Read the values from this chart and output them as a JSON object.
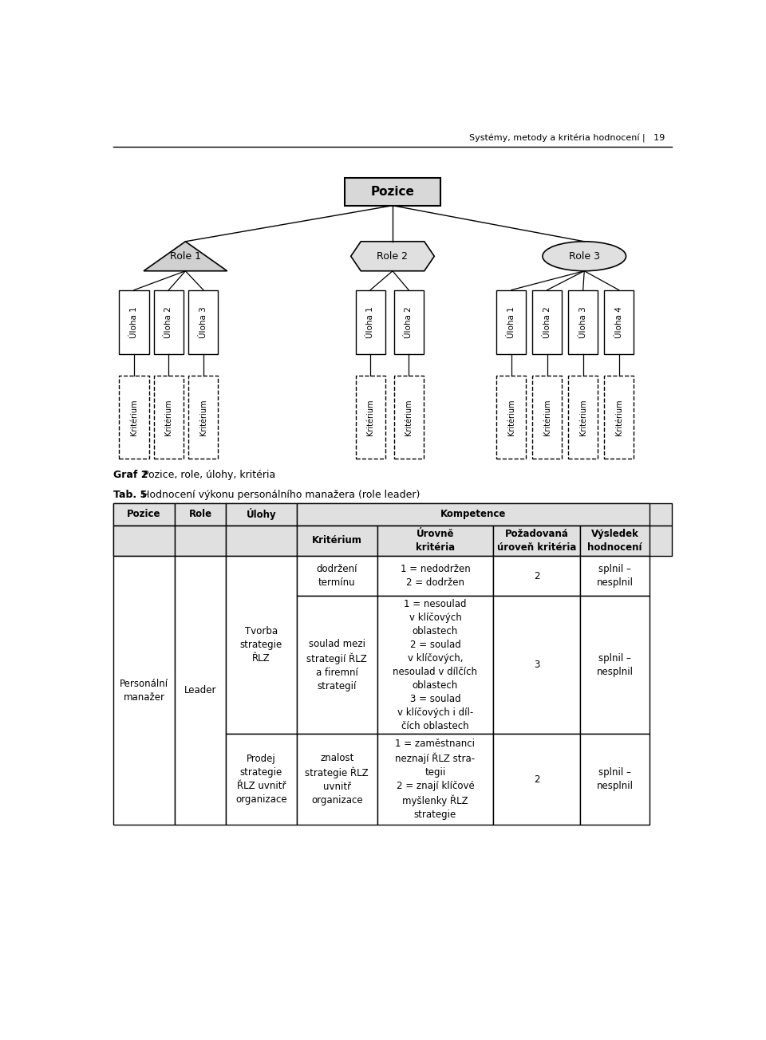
{
  "header_text": "Systémy, metody a kritéria hodnocení |   19",
  "graf_label": "Graf 2",
  "graf_desc": "  Pozice, role, úlohy, kritéria",
  "tab_label": "Tab. 5",
  "tab_desc": "  Hodnocení výkonu personálního manažera (role leader)",
  "pozice_label": "Pozice",
  "roles": [
    "Role 1",
    "Role 2",
    "Role 3"
  ],
  "ulohy": {
    "Role 1": [
      "Úloha 1",
      "Úloha 2",
      "Úloha 3"
    ],
    "Role 2": [
      "Úloha 1",
      "Úloha 2"
    ],
    "Role 3": [
      "Úloha 1",
      "Úloha 2",
      "Úloha 3",
      "Úloha 4"
    ]
  },
  "kriterium_label": "Kritérium",
  "bg_header": "#e0e0e0",
  "shape_fill_pozice": "#d8d8d8",
  "shape_fill_role1": "#d0d0d0",
  "shape_fill_role2": "#e8e8e8",
  "shape_fill_role3": "#e8e8e8",
  "table_rows": [
    {
      "kriterium": "dodržení\ntermínu",
      "urovne": "1 = nedodržen\n2 = dodržen",
      "pozadovana": "2",
      "vysledek": "splnil –\nnesplnil"
    },
    {
      "kriterium": "soulad mezi\nstrategií ŘLZ\na firemní\nstrategií",
      "urovne": "1 = nesoulad\nv klíčových\noblastech\n2 = soulad\nv klíčových,\nnesoulad v dílčích\noblastech\n3 = soulad\nv klíčových i díl-\nčích oblastech",
      "pozadovana": "3",
      "vysledek": "splnil –\nnesplnil"
    },
    {
      "kriterium": "znalost\nstrategie ŘLZ\nuvnitř\norganizace",
      "urovne": "1 = zaměstnanci\nneznají ŘLZ stra-\ntegii\n2 = znají klíčové\nmyšlenky ŘLZ\nstrategie",
      "pozadovana": "2",
      "vysledek": "splnil –\nnesplnil"
    }
  ]
}
